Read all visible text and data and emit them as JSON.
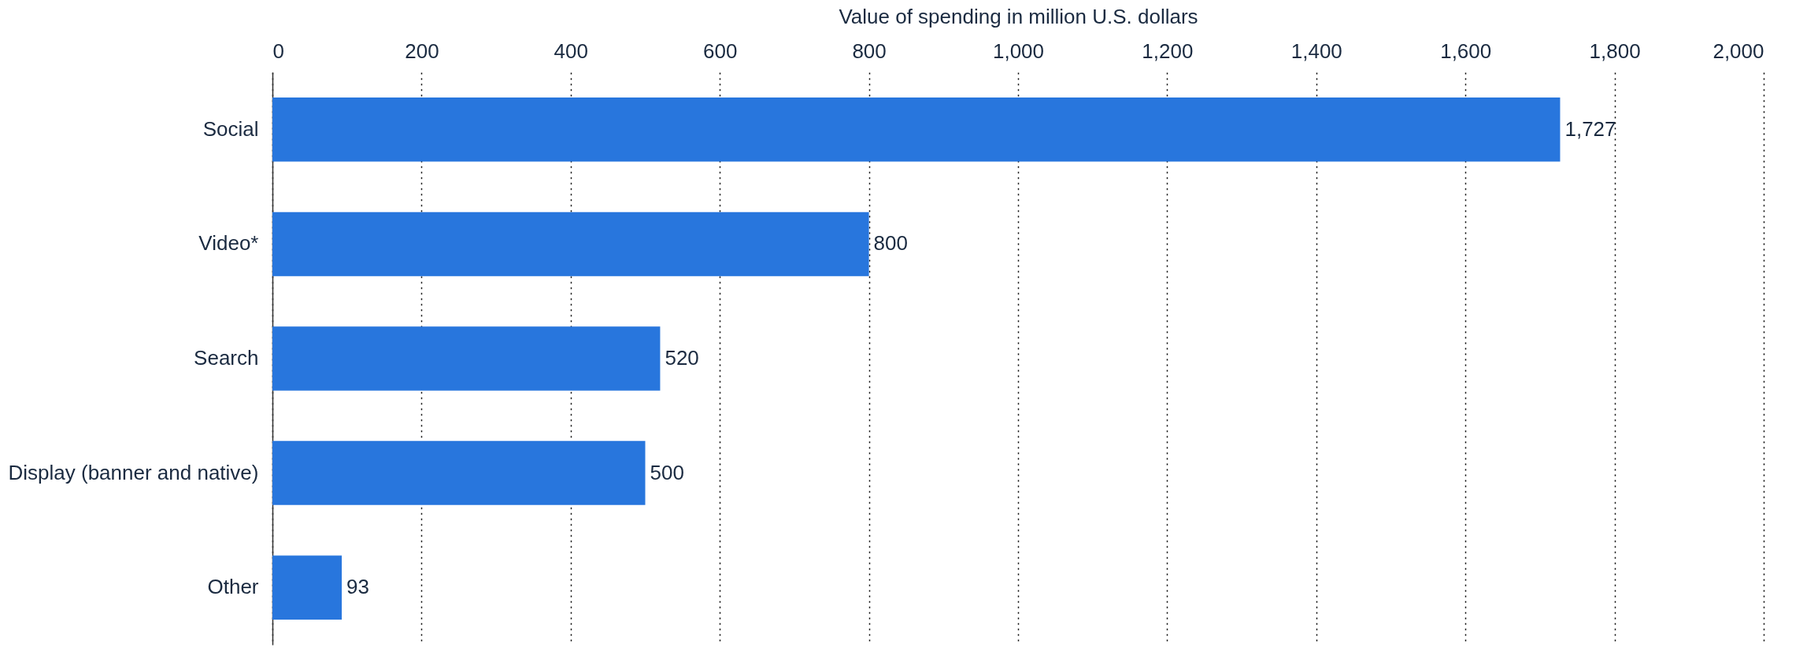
{
  "chart_data": {
    "type": "bar",
    "orientation": "horizontal",
    "xlabel": "Value of spending in million U.S. dollars",
    "categories": [
      "Social",
      "Video*",
      "Search",
      "Display (banner and native)",
      "Other"
    ],
    "values": [
      1727,
      800,
      520,
      500,
      93
    ],
    "value_labels": [
      "1,727",
      "800",
      "520",
      "500",
      "93"
    ],
    "color": "#2876dd",
    "xlim": [
      0,
      2000
    ],
    "xticks": [
      0,
      200,
      400,
      600,
      800,
      {
        "value": 1000,
        "label": "1,000"
      },
      {
        "value": 1200,
        "label": "1,200"
      },
      {
        "value": 1400,
        "label": "1,400"
      },
      {
        "value": 1600,
        "label": "1,600"
      },
      {
        "value": 1800,
        "label": "1,800"
      },
      {
        "value": 2000,
        "label": "2,000"
      }
    ],
    "grid": "x"
  }
}
